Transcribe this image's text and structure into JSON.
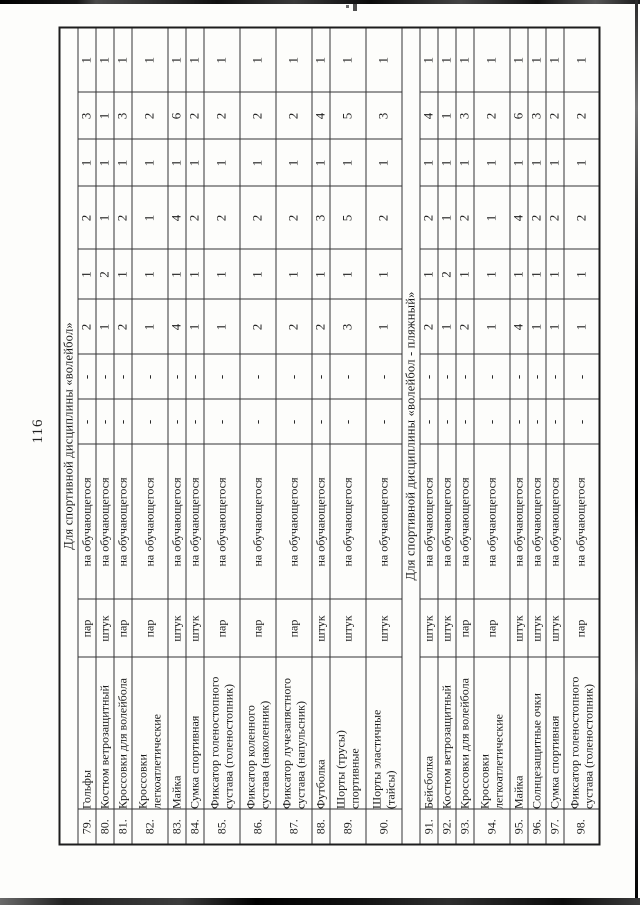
{
  "page_number": "116",
  "sections": [
    {
      "title": "Для спортивной дисциплины «волейбол»",
      "rows": [
        {
          "num": "79.",
          "name_lines": [
            "Гольфы"
          ],
          "unit": "пар",
          "per": "на обучающегося",
          "values": [
            "-",
            "-",
            "2",
            "1",
            "2",
            "1",
            "3",
            "1"
          ]
        },
        {
          "num": "80.",
          "name_lines": [
            "Костюм ветрозащитный"
          ],
          "unit": "штук",
          "per": "на обучающегося",
          "values": [
            "-",
            "-",
            "1",
            "2",
            "1",
            "1",
            "1",
            "1"
          ]
        },
        {
          "num": "81.",
          "name_lines": [
            "Кроссовки для волейбола"
          ],
          "unit": "пар",
          "per": "на обучающегося",
          "values": [
            "-",
            "-",
            "2",
            "1",
            "2",
            "1",
            "3",
            "1"
          ]
        },
        {
          "num": "82.",
          "name_lines": [
            "Кроссовки",
            "легкоатлетические"
          ],
          "unit": "пар",
          "per": "на обучающегося",
          "values": [
            "-",
            "-",
            "1",
            "1",
            "1",
            "1",
            "2",
            "1"
          ]
        },
        {
          "num": "83.",
          "name_lines": [
            "Майка"
          ],
          "unit": "штук",
          "per": "на обучающегося",
          "values": [
            "-",
            "-",
            "4",
            "1",
            "4",
            "1",
            "6",
            "1"
          ]
        },
        {
          "num": "84.",
          "name_lines": [
            "Сумка спортивная"
          ],
          "unit": "штук",
          "per": "на обучающегося",
          "values": [
            "-",
            "-",
            "1",
            "1",
            "2",
            "1",
            "2",
            "1"
          ]
        },
        {
          "num": "85.",
          "name_lines": [
            "Фиксатор голеностопного",
            "сустава (голеностопник)"
          ],
          "unit": "пар",
          "per": "на обучающегося",
          "values": [
            "-",
            "-",
            "1",
            "1",
            "2",
            "1",
            "2",
            "1"
          ]
        },
        {
          "num": "86.",
          "name_lines": [
            "Фиксатор коленного",
            "сустава (наколенник)"
          ],
          "unit": "пар",
          "per": "на обучающегося",
          "values": [
            "-",
            "-",
            "2",
            "1",
            "2",
            "1",
            "2",
            "1"
          ]
        },
        {
          "num": "87.",
          "name_lines": [
            "Фиксатор лучезапястного",
            "сустава (напульсник)"
          ],
          "unit": "пар",
          "per": "на обучающегося",
          "values": [
            "-",
            "-",
            "2",
            "1",
            "2",
            "1",
            "2",
            "1"
          ]
        },
        {
          "num": "88.",
          "name_lines": [
            "Футболка"
          ],
          "unit": "штук",
          "per": "на обучающегося",
          "values": [
            "-",
            "-",
            "2",
            "1",
            "3",
            "1",
            "4",
            "1"
          ]
        },
        {
          "num": "89.",
          "name_lines": [
            "Шорты (трусы)",
            "спортивные"
          ],
          "unit": "штук",
          "per": "на обучающегося",
          "values": [
            "-",
            "-",
            "3",
            "1",
            "5",
            "1",
            "5",
            "1"
          ]
        },
        {
          "num": "90.",
          "name_lines": [
            "Шорты эластичные",
            "(тайсы)"
          ],
          "unit": "штук",
          "per": "на обучающегося",
          "values": [
            "-",
            "-",
            "1",
            "1",
            "2",
            "1",
            "3",
            "1"
          ]
        }
      ]
    },
    {
      "title": "Для спортивной дисциплины «волейбол - пляжный»",
      "rows": [
        {
          "num": "91.",
          "name_lines": [
            "Бейсболка"
          ],
          "unit": "штук",
          "per": "на обучающегося",
          "values": [
            "-",
            "-",
            "2",
            "1",
            "2",
            "1",
            "4",
            "1"
          ]
        },
        {
          "num": "92.",
          "name_lines": [
            "Костюм ветрозащитный"
          ],
          "unit": "штук",
          "per": "на обучающегося",
          "values": [
            "-",
            "-",
            "1",
            "2",
            "1",
            "1",
            "1",
            "1"
          ]
        },
        {
          "num": "93.",
          "name_lines": [
            "Кроссовки для волейбола"
          ],
          "unit": "пар",
          "per": "на обучающегося",
          "values": [
            "-",
            "-",
            "2",
            "1",
            "2",
            "1",
            "3",
            "1"
          ]
        },
        {
          "num": "94.",
          "name_lines": [
            "Кроссовки",
            "легкоатлетические"
          ],
          "unit": "пар",
          "per": "на обучающегося",
          "values": [
            "-",
            "-",
            "1",
            "1",
            "1",
            "1",
            "2",
            "1"
          ]
        },
        {
          "num": "95.",
          "name_lines": [
            "Майка"
          ],
          "unit": "штук",
          "per": "на обучающегося",
          "values": [
            "-",
            "-",
            "4",
            "1",
            "4",
            "1",
            "6",
            "1"
          ]
        },
        {
          "num": "96.",
          "name_lines": [
            "Солнцезащитные очки"
          ],
          "unit": "штук",
          "per": "на обучающегося",
          "values": [
            "-",
            "-",
            "1",
            "1",
            "2",
            "1",
            "3",
            "1"
          ]
        },
        {
          "num": "97.",
          "name_lines": [
            "Сумка спортивная"
          ],
          "unit": "штук",
          "per": "на обучающегося",
          "values": [
            "-",
            "-",
            "1",
            "1",
            "2",
            "1",
            "2",
            "1"
          ]
        },
        {
          "num": "98.",
          "name_lines": [
            "Фиксатор голеностопного",
            "сустава (голеностопник)"
          ],
          "unit": "пар",
          "per": "на обучающегося",
          "values": [
            "-",
            "-",
            "1",
            "1",
            "2",
            "1",
            "2",
            "1"
          ]
        }
      ]
    }
  ]
}
